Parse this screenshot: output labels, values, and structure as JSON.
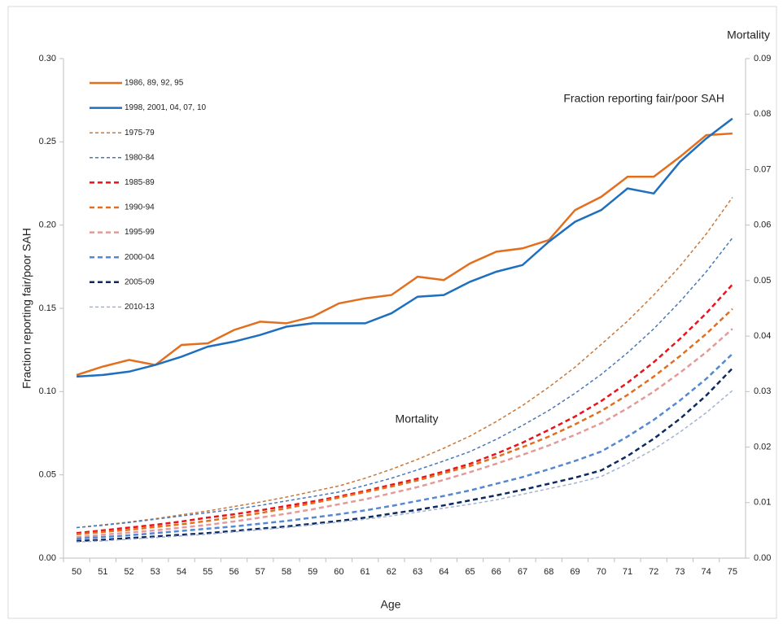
{
  "chart_data": {
    "type": "line",
    "xlabel": "Age",
    "ylabel": "Fraction reporting fair/poor SAH",
    "y2label": "Mortality",
    "annotations": [
      "Fraction reporting fair/poor SAH",
      "Mortality"
    ],
    "categories": [
      "50",
      "51",
      "52",
      "53",
      "54",
      "55",
      "56",
      "57",
      "58",
      "59",
      "60",
      "61",
      "62",
      "63",
      "64",
      "65",
      "66",
      "67",
      "68",
      "69",
      "70",
      "71",
      "72",
      "73",
      "74",
      "75"
    ],
    "ylim": [
      0,
      0.3
    ],
    "yticks": [
      {
        "value": 0,
        "label": "0.00"
      },
      {
        "value": 0.05,
        "label": "0.05"
      },
      {
        "value": 0.1,
        "label": "0.10"
      },
      {
        "value": 0.15,
        "label": "0.15"
      },
      {
        "value": 0.2,
        "label": "0.20"
      },
      {
        "value": 0.25,
        "label": "0.25"
      },
      {
        "value": 0.3,
        "label": "0.30"
      }
    ],
    "y2lim": [
      0,
      0.09
    ],
    "y2ticks": [
      {
        "value": 0,
        "label": "0.00"
      },
      {
        "value": 0.01,
        "label": "0.01"
      },
      {
        "value": 0.02,
        "label": "0.02"
      },
      {
        "value": 0.03,
        "label": "0.03"
      },
      {
        "value": 0.04,
        "label": "0.04"
      },
      {
        "value": 0.05,
        "label": "0.05"
      },
      {
        "value": 0.06,
        "label": "0.06"
      },
      {
        "value": 0.07,
        "label": "0.07"
      },
      {
        "value": 0.08,
        "label": "0.08"
      },
      {
        "value": 0.09,
        "label": "0.09"
      }
    ],
    "legend": "upper left",
    "series": [
      {
        "name": "1986, 89, 92, 95",
        "color": "#e36f1e",
        "style": "solid",
        "axis": "y",
        "values": [
          0.11,
          0.115,
          0.119,
          0.116,
          0.128,
          0.129,
          0.137,
          0.142,
          0.141,
          0.145,
          0.153,
          0.156,
          0.158,
          0.169,
          0.167,
          0.177,
          0.184,
          0.186,
          0.191,
          0.209,
          0.217,
          0.229,
          0.229,
          0.241,
          0.254,
          0.255
        ]
      },
      {
        "name": "1998, 2001, 04, 07, 10",
        "color": "#1f6fbf",
        "style": "solid",
        "axis": "y",
        "values": [
          0.109,
          0.11,
          0.112,
          0.116,
          0.121,
          0.127,
          0.13,
          0.134,
          0.139,
          0.141,
          0.141,
          0.141,
          0.147,
          0.157,
          0.158,
          0.166,
          0.172,
          0.176,
          0.19,
          0.202,
          0.209,
          0.222,
          0.219,
          0.238,
          0.252,
          0.264
        ]
      },
      {
        "name": "1975-79",
        "color": "#c8783a",
        "style": "thin",
        "axis": "y2",
        "values": [
          0.0055,
          0.006,
          0.0065,
          0.0071,
          0.0078,
          0.0085,
          0.0093,
          0.0101,
          0.011,
          0.012,
          0.013,
          0.0144,
          0.016,
          0.0178,
          0.0198,
          0.022,
          0.0246,
          0.0275,
          0.0308,
          0.0344,
          0.0385,
          0.0427,
          0.0474,
          0.0526,
          0.0584,
          0.065
        ]
      },
      {
        "name": "1980-84",
        "color": "#4a78b8",
        "style": "thin",
        "axis": "y2",
        "values": [
          0.0055,
          0.0059,
          0.0064,
          0.007,
          0.0076,
          0.0082,
          0.0088,
          0.0095,
          0.0103,
          0.0111,
          0.0119,
          0.0131,
          0.0144,
          0.0159,
          0.0175,
          0.0192,
          0.0214,
          0.0239,
          0.0266,
          0.0297,
          0.0331,
          0.037,
          0.0413,
          0.0462,
          0.0516,
          0.0577
        ]
      },
      {
        "name": "1985-89",
        "color": "#e8141b",
        "style": "dashed",
        "axis": "y2",
        "values": [
          0.0045,
          0.005,
          0.0055,
          0.006,
          0.0066,
          0.0073,
          0.0079,
          0.0086,
          0.0094,
          0.0102,
          0.0111,
          0.0121,
          0.0132,
          0.0143,
          0.0156,
          0.017,
          0.0188,
          0.0208,
          0.0231,
          0.0255,
          0.0283,
          0.0316,
          0.0353,
          0.0395,
          0.0441,
          0.0493
        ]
      },
      {
        "name": "1990-94",
        "color": "#e07020",
        "style": "dashed",
        "axis": "y2",
        "values": [
          0.0043,
          0.0047,
          0.0051,
          0.0056,
          0.0061,
          0.0067,
          0.0074,
          0.0081,
          0.009,
          0.0099,
          0.0109,
          0.0119,
          0.0129,
          0.014,
          0.0153,
          0.0166,
          0.0182,
          0.02,
          0.0219,
          0.0241,
          0.0265,
          0.0294,
          0.0327,
          0.0364,
          0.0404,
          0.0449
        ]
      },
      {
        "name": "1995-99",
        "color": "#e39a9a",
        "style": "dashed",
        "axis": "y2",
        "values": [
          0.0038,
          0.0042,
          0.0046,
          0.005,
          0.0055,
          0.006,
          0.0066,
          0.0073,
          0.008,
          0.0088,
          0.0097,
          0.0106,
          0.0117,
          0.0128,
          0.0141,
          0.0155,
          0.017,
          0.0186,
          0.0203,
          0.0222,
          0.0243,
          0.027,
          0.03,
          0.0334,
          0.0371,
          0.0413
        ]
      },
      {
        "name": "2000-04",
        "color": "#5588d0",
        "style": "dashed",
        "axis": "y2",
        "values": [
          0.0035,
          0.0038,
          0.0041,
          0.0045,
          0.0049,
          0.0053,
          0.0057,
          0.0062,
          0.0067,
          0.0073,
          0.0079,
          0.0086,
          0.0094,
          0.0103,
          0.0112,
          0.0122,
          0.0134,
          0.0146,
          0.016,
          0.0175,
          0.0192,
          0.0219,
          0.0249,
          0.0284,
          0.0323,
          0.0368
        ]
      },
      {
        "name": "2005-09",
        "color": "#0d2a5e",
        "style": "dashed",
        "axis": "y2",
        "values": [
          0.0031,
          0.0033,
          0.0036,
          0.0039,
          0.0042,
          0.0045,
          0.0049,
          0.0053,
          0.0057,
          0.0062,
          0.0067,
          0.0073,
          0.008,
          0.0087,
          0.0095,
          0.0104,
          0.0113,
          0.0123,
          0.0134,
          0.0145,
          0.0158,
          0.0184,
          0.0215,
          0.0251,
          0.0293,
          0.0342
        ]
      },
      {
        "name": "2010-13",
        "color": "#a3b2d4",
        "style": "thin",
        "axis": "y2",
        "values": [
          0.0029,
          0.0031,
          0.0034,
          0.0037,
          0.004,
          0.0043,
          0.0047,
          0.0051,
          0.0055,
          0.006,
          0.0065,
          0.007,
          0.0076,
          0.0083,
          0.009,
          0.0097,
          0.0105,
          0.0115,
          0.0125,
          0.0135,
          0.0147,
          0.017,
          0.0196,
          0.0227,
          0.0262,
          0.0302
        ]
      }
    ]
  }
}
